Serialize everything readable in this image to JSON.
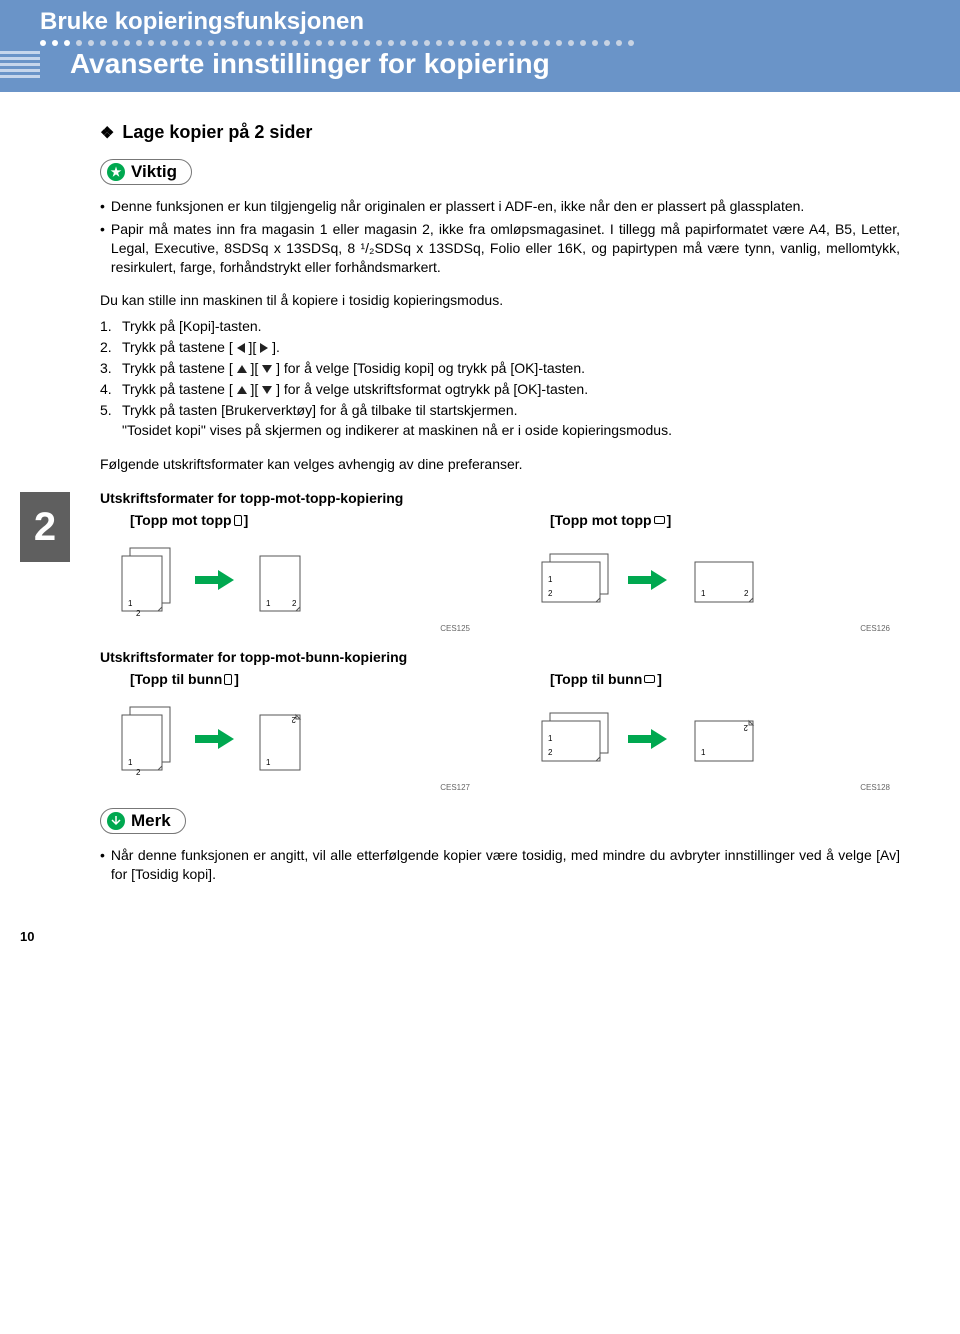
{
  "colors": {
    "header_bg": "#6a94c8",
    "accent_green": "#00a850",
    "side_tab_bg": "#5f5f5f",
    "text": "#000000",
    "dot_alt": [
      "#6a94c8",
      "#8f9fb8",
      "#a6b4c9",
      "#c5ccd8"
    ]
  },
  "header": {
    "chapter": "Bruke kopieringsfunksjonen",
    "section": "Avanserte innstillinger for kopiering"
  },
  "side_tab": "2",
  "subheading": "Lage kopier på 2 sider",
  "important_label": "Viktig",
  "important_items": [
    "Denne funksjonen er kun tilgjengelig når originalen er plassert i ADF-en, ikke når den er plassert på glassplaten.",
    "Papir må mates inn fra magasin 1 eller magasin 2, ikke fra omløpsmagasinet. I tillegg må papirformatet være A4, B5, Letter, Legal, Executive, 8SDSq x 13SDSq, 8 ¹/₂SDSq x 13SDSq, Folio eller 16K, og papirtypen må være tynn, vanlig, mellomtykk, resirkulert, farge, forhånds­trykt eller forhåndsmarkert."
  ],
  "intro": "Du kan stille inn maskinen til å kopiere i tosidig kopieringsmodus.",
  "steps": [
    "Trykk på [Kopi]-tasten.",
    "Trykk på tastene [ ◀ ][ ▶ ].",
    "Trykk på tastene [ ▲ ][ ▼ ] for å velge [Tosidig kopi] og trykk på [OK]-tasten.",
    "Trykk på tastene [ ▲ ][ ▼ ] for å velge utskriftsformat ogtrykk på [OK]-tasten.",
    "Trykk på tasten [Brukerverktøy] for å gå tilbake til startskjermen."
  ],
  "after_steps": "\"Tosidet kopi\" vises på skjermen og indikerer at maskinen nå er i oside kopieringsmodus.",
  "preference_intro": "Følgende utskriftsformater kan velges avhengig av dine preferanser.",
  "formats": {
    "top_top": {
      "heading": "Utskriftsformater for topp-mot-topp-kopiering",
      "col1_label": "[Topp mot topp",
      "col1_suffix": "]",
      "col1_orient": "portrait",
      "col1_ces": "CES125",
      "col2_label": "[Topp mot topp",
      "col2_suffix": "]",
      "col2_orient": "landscape",
      "col2_ces": "CES126"
    },
    "top_bottom": {
      "heading": "Utskriftsformater for topp-mot-bunn-kopiering",
      "col1_label": "[Topp til bunn",
      "col1_suffix": "]",
      "col1_orient": "portrait",
      "col1_ces": "CES127",
      "col2_label": "[Topp til bunn",
      "col2_suffix": "]",
      "col2_orient": "landscape",
      "col2_ces": "CES128"
    }
  },
  "note_label": "Merk",
  "note_items": [
    "Når denne funksjonen er angitt, vil alle etterfølgende kopier være tosidig, med mindre du avbryter innstillinger ved å velge  [Av] for [Tosidig kopi]."
  ],
  "diagrams": {
    "arrow_color": "#00a850",
    "stroke": "#555555",
    "num_font_size": 8,
    "tt_portrait": {
      "type": "duplex-diagram",
      "input_orient": "portrait",
      "output_orient": "portrait",
      "out_page2_rotated": false
    },
    "tt_landscape": {
      "type": "duplex-diagram",
      "input_orient": "landscape",
      "output_orient": "landscape",
      "out_page2_rotated": false
    },
    "tb_portrait": {
      "type": "duplex-diagram",
      "input_orient": "portrait",
      "output_orient": "portrait",
      "out_page2_rotated": true
    },
    "tb_landscape": {
      "type": "duplex-diagram",
      "input_orient": "landscape",
      "output_orient": "landscape",
      "out_page2_rotated": true
    }
  },
  "page_number": "10"
}
